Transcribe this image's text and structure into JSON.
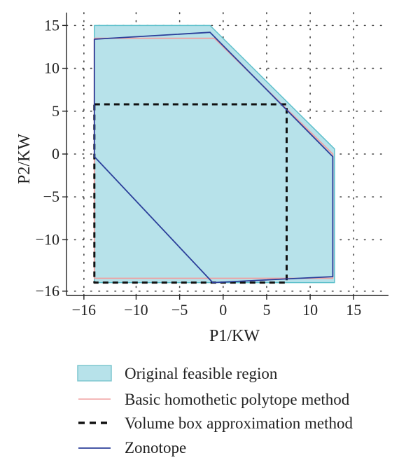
{
  "chart_data": {
    "type": "area",
    "xlabel": "P1/KW",
    "ylabel": "P2/KW",
    "xlim": [
      -18,
      19
    ],
    "ylim": [
      -16.5,
      16.5
    ],
    "xticks": [
      -16,
      -10,
      -5,
      0,
      5,
      10,
      15
    ],
    "yticks": [
      -16,
      -10,
      -5,
      0,
      5,
      10,
      15
    ],
    "xtick_labels": [
      "−16",
      "−10",
      "−5",
      "0",
      "5",
      "10",
      "15"
    ],
    "ytick_labels": [
      "−16",
      "−10",
      "−5",
      "0",
      "5",
      "10",
      "15"
    ],
    "grid": "dotted",
    "legend_position": "below",
    "series": [
      {
        "name": "Original feasible region",
        "kind": "polygon",
        "fill": "#b7e2ea",
        "stroke": "#5fc1cc",
        "points": [
          [
            -14.8,
            15
          ],
          [
            -1.5,
            15
          ],
          [
            12.8,
            0.6
          ],
          [
            12.8,
            -15
          ],
          [
            -14.8,
            -15
          ]
        ]
      },
      {
        "name": "Basic homothetic polytope method",
        "kind": "polygon",
        "stroke": "#f0a0a0",
        "points": [
          [
            -14.8,
            13.5
          ],
          [
            -1,
            13.5
          ],
          [
            12.6,
            0
          ],
          [
            12.6,
            -14.5
          ],
          [
            -14.8,
            -14.5
          ]
        ]
      },
      {
        "name": "Volume box approximation method",
        "kind": "polygon",
        "stroke": "#111111",
        "dashed": true,
        "points": [
          [
            -14.8,
            5.8
          ],
          [
            7.3,
            5.8
          ],
          [
            7.3,
            -15
          ],
          [
            -14.8,
            -15
          ]
        ]
      },
      {
        "name": "Zonotope",
        "kind": "polygon",
        "stroke": "#2b3f9a",
        "points": [
          [
            -14.8,
            13.4
          ],
          [
            -1.5,
            14.2
          ],
          [
            12.6,
            -0.3
          ],
          [
            12.6,
            -14.3
          ],
          [
            -1.2,
            -15
          ],
          [
            -14.8,
            -0.3
          ]
        ]
      }
    ]
  }
}
